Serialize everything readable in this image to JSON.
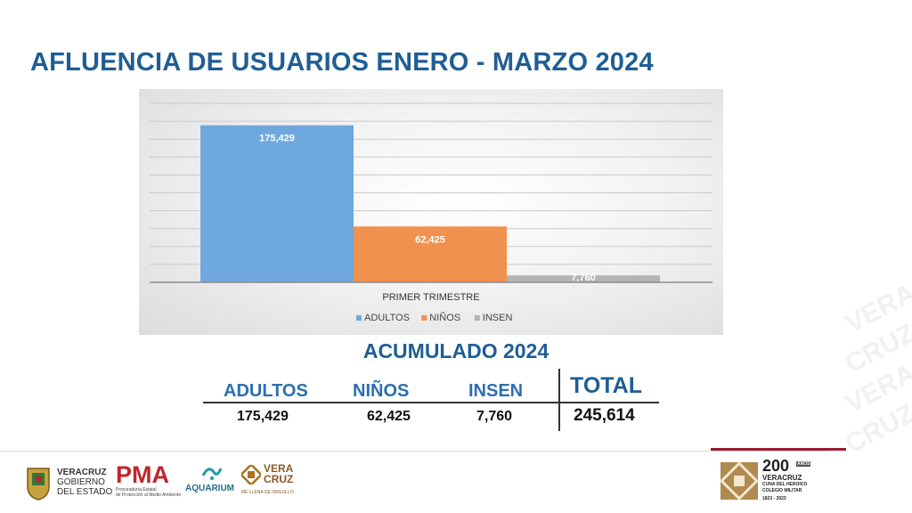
{
  "title": "AFLUENCIA DE USUARIOS ENERO - MARZO 2024",
  "chart_data": {
    "type": "bar",
    "categories": [
      "PRIMER TRIMESTRE"
    ],
    "series": [
      {
        "name": "ADULTOS",
        "values": [
          175429
        ],
        "label": "175,429",
        "color": "#6fa8dc"
      },
      {
        "name": "NIÑOS",
        "values": [
          62425
        ],
        "label": "62,425",
        "color": "#f0914f"
      },
      {
        "name": "INSEN",
        "values": [
          7760
        ],
        "label": "7,760",
        "color": "#b4b4b4"
      }
    ],
    "ylim": [
      0,
      200000
    ],
    "grid": true,
    "legend": "bottom",
    "title": "",
    "xlabel": "",
    "ylabel": ""
  },
  "summary": {
    "title": "ACUMULADO 2024",
    "columns": [
      {
        "label": "ADULTOS",
        "value": "175,429"
      },
      {
        "label": "NIÑOS",
        "value": "62,425"
      },
      {
        "label": "INSEN",
        "value": "7,760"
      }
    ],
    "total_label": "TOTAL",
    "total_value": "245,614"
  },
  "footer": {
    "veracruz_gov": [
      "VERACRUZ",
      "GOBIERNO",
      "DEL ESTADO"
    ],
    "pma": "PMA",
    "pma_sub": [
      "Procuraduría Estatal",
      "de Protección al Medio Ambiente"
    ],
    "aquarium": "AQUARIUM",
    "veracruz_brand": [
      "VERA",
      "CRUZ"
    ],
    "veracruz_slogan": "ME LLENA DE ORGULLO",
    "anniv_number": "200",
    "anniv_years": "AÑOS",
    "anniv_place": "VERACRUZ",
    "anniv_text": [
      "CUNA DEL HEROICO",
      "COLEGIO MILITAR"
    ],
    "anniv_dates": "1823 - 2023"
  },
  "colors": {
    "title": "#1f5e94",
    "accent_red": "#9b1b30"
  }
}
